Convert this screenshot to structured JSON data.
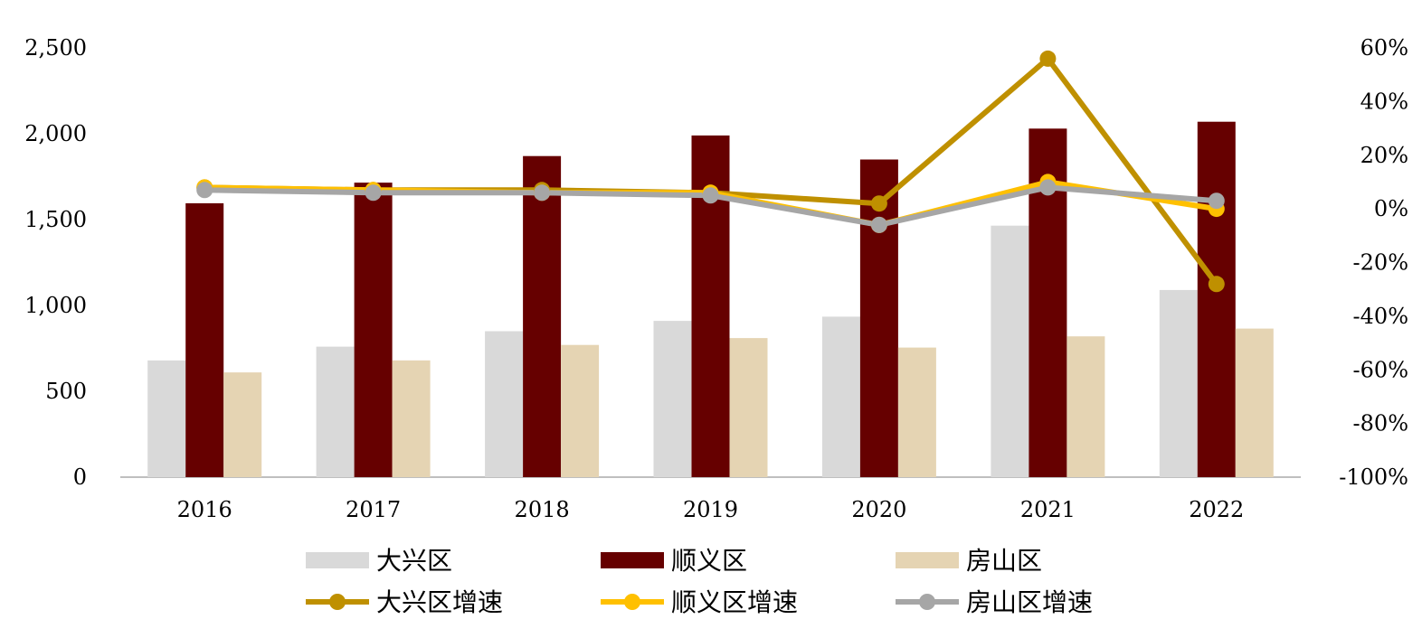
{
  "chart_data": {
    "type": "bar",
    "title": "",
    "xlabel": "",
    "ylabel": "",
    "categories": [
      "2016",
      "2017",
      "2018",
      "2019",
      "2020",
      "2021",
      "2022"
    ],
    "series": [
      {
        "name": "大兴区",
        "kind": "bar",
        "axis": "left",
        "color": "#d9d9d9",
        "values": [
          680,
          760,
          850,
          910,
          935,
          1465,
          1090
        ]
      },
      {
        "name": "顺义区",
        "kind": "bar",
        "axis": "left",
        "color": "#660000",
        "values": [
          1595,
          1715,
          1870,
          1990,
          1850,
          2030,
          2070
        ]
      },
      {
        "name": "房山区",
        "kind": "bar",
        "axis": "left",
        "color": "#e5d4b3",
        "values": [
          610,
          680,
          770,
          810,
          755,
          820,
          865
        ]
      },
      {
        "name": "大兴区增速",
        "kind": "line",
        "axis": "right",
        "color": "#bf9000",
        "values": [
          8,
          7,
          7,
          6,
          2,
          56,
          -28
        ]
      },
      {
        "name": "顺义区增速",
        "kind": "line",
        "axis": "right",
        "color": "#ffc000",
        "values": [
          8,
          7,
          6,
          6,
          -6,
          10,
          0
        ]
      },
      {
        "name": "房山区增速",
        "kind": "line",
        "axis": "right",
        "color": "#a6a6a6",
        "values": [
          7,
          6,
          6,
          5,
          -6,
          8,
          3
        ]
      }
    ],
    "y_left": {
      "min": 0,
      "max": 2500,
      "ticks": [
        "0",
        "500",
        "1,000",
        "1,500",
        "2,000",
        "2,500"
      ]
    },
    "y_right": {
      "min": -100,
      "max": 60,
      "ticks": [
        "-100%",
        "-80%",
        "-60%",
        "-40%",
        "-20%",
        "0%",
        "20%",
        "40%",
        "60%"
      ]
    },
    "grid": false,
    "legend_position": "bottom"
  }
}
